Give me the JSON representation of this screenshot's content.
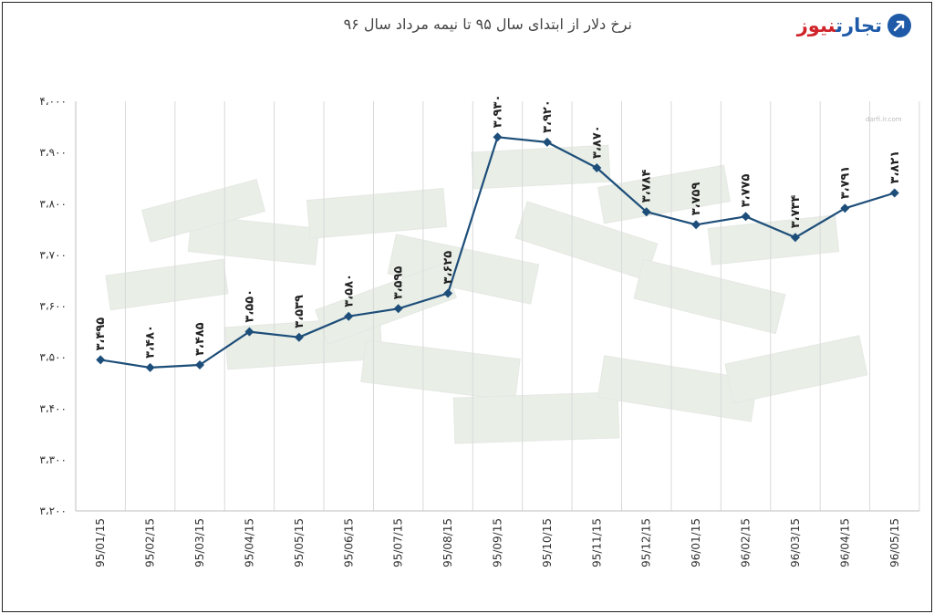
{
  "header": {
    "title": "نرخ دلار از ابتدای سال ۹۵ تا نیمه مرداد سال ۹۶",
    "logo_part1": "تجارت",
    "logo_part2": "نیوز"
  },
  "watermark": "darfi.ir.com",
  "colors": {
    "line": "#1d4e79",
    "grid": "#d9d9d9",
    "brand_blue": "#1e5aa8",
    "brand_red": "#d0232a"
  },
  "chart_data": {
    "type": "line",
    "title": "نرخ دلار از ابتدای سال ۹۵ تا نیمه مرداد سال ۹۶",
    "xlabel": "",
    "ylabel": "",
    "categories": [
      "95/01/15",
      "95/02/15",
      "95/03/15",
      "95/04/15",
      "95/05/15",
      "95/06/15",
      "95/07/15",
      "95/08/15",
      "95/09/15",
      "95/10/15",
      "95/11/15",
      "95/12/15",
      "96/01/15",
      "96/02/15",
      "96/03/15",
      "96/04/15",
      "96/05/15"
    ],
    "values": [
      3495,
      3480,
      3485,
      3550,
      3539,
      3580,
      3595,
      3625,
      3930,
      3920,
      3870,
      3784,
      3759,
      3775,
      3734,
      3791,
      3821
    ],
    "data_labels": [
      "۳،۴۹۵",
      "۳،۴۸۰",
      "۳،۴۸۵",
      "۳،۵۵۰",
      "۳،۵۳۹",
      "۳،۵۸۰",
      "۳،۵۹۵",
      "۳،۶۲۵",
      "۳،۹۳۰",
      "۳،۹۲۰",
      "۳،۸۷۰",
      "۳،۷۸۴",
      "۳،۷۵۹",
      "۳،۷۷۵",
      "۳،۷۳۴",
      "۳،۷۹۱",
      "۳،۸۲۱"
    ],
    "ylim": [
      3200,
      4000
    ],
    "y_ticks": [
      3200,
      3300,
      3400,
      3500,
      3600,
      3700,
      3800,
      3900,
      4000
    ],
    "y_tick_labels": [
      "۳،۲۰۰",
      "۳،۳۰۰",
      "۳،۴۰۰",
      "۳،۵۰۰",
      "۳،۶۰۰",
      "۳،۷۰۰",
      "۳،۸۰۰",
      "۳،۹۰۰",
      "۴،۰۰۰"
    ],
    "grid": "vertical",
    "legend": "none",
    "marker": "diamond"
  }
}
